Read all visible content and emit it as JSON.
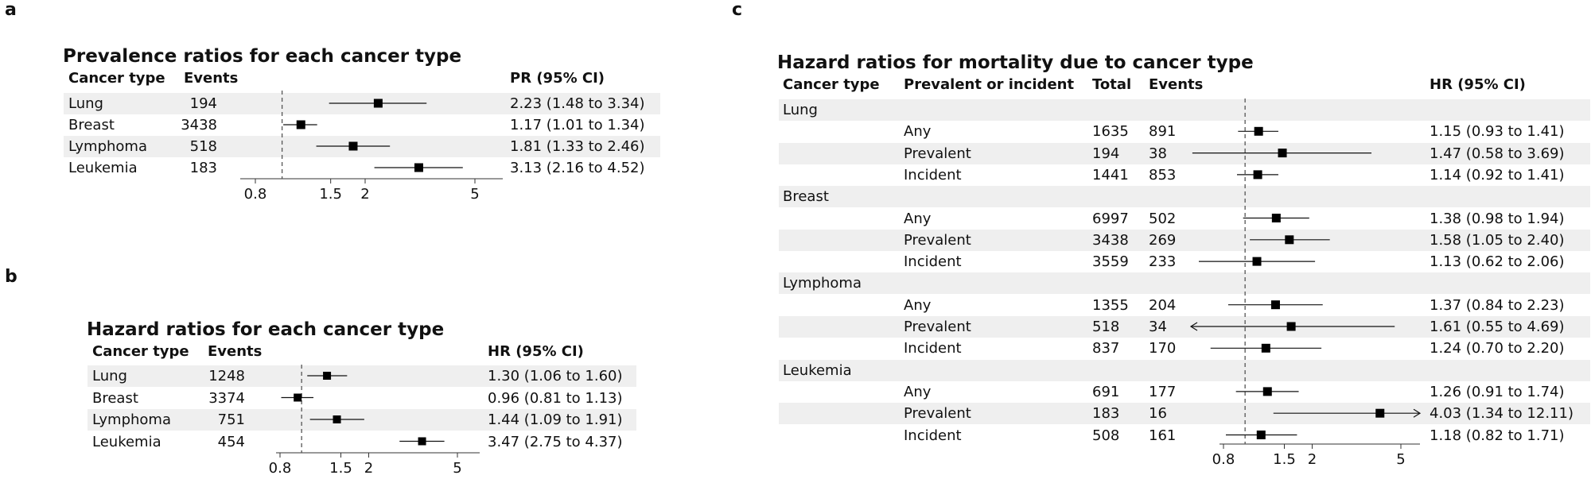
{
  "panels": [
    {
      "letter": "a",
      "title": "Prevalence ratios for each cancer type",
      "headers": {
        "type": "Cancer type",
        "events": "Events",
        "ci": "PR (95% CI)"
      }
    },
    {
      "letter": "b",
      "title": "Hazard ratios for each cancer type",
      "headers": {
        "type": "Cancer type",
        "events": "Events",
        "ci": "HR (95% CI)"
      }
    },
    {
      "letter": "c",
      "title": "Hazard ratios for mortality due to cancer type",
      "headers": {
        "type": "Cancer type",
        "pi": "Prevalent or incident",
        "total": "Total",
        "events": "Events",
        "ci": "HR (95% CI)"
      }
    }
  ],
  "chart_data": [
    {
      "type": "forest",
      "panel": "a",
      "title": "Prevalence ratios for each cancer type",
      "reference_line": 1,
      "xticks": [
        "0.8",
        "1.5",
        "2",
        "5"
      ],
      "rows": [
        {
          "label": "Lung",
          "events": "194",
          "est": 2.23,
          "lo": 1.48,
          "hi": 3.34,
          "ci_text": "2.23 (1.48 to 3.34)"
        },
        {
          "label": "Breast",
          "events": "3438",
          "est": 1.17,
          "lo": 1.01,
          "hi": 1.34,
          "ci_text": "1.17 (1.01 to 1.34)"
        },
        {
          "label": "Lymphoma",
          "events": "518",
          "est": 1.81,
          "lo": 1.33,
          "hi": 2.46,
          "ci_text": "1.81 (1.33 to 2.46)"
        },
        {
          "label": "Leukemia",
          "events": "183",
          "est": 3.13,
          "lo": 2.16,
          "hi": 4.52,
          "ci_text": "3.13 (2.16 to 4.52)"
        }
      ]
    },
    {
      "type": "forest",
      "panel": "b",
      "title": "Hazard ratios for each cancer type",
      "reference_line": 1,
      "xticks": [
        "0.8",
        "1.5",
        "2",
        "5"
      ],
      "rows": [
        {
          "label": "Lung",
          "events": "1248",
          "est": 1.3,
          "lo": 1.06,
          "hi": 1.6,
          "ci_text": "1.30 (1.06 to 1.60)"
        },
        {
          "label": "Breast",
          "events": "3374",
          "est": 0.96,
          "lo": 0.81,
          "hi": 1.13,
          "ci_text": "0.96 (0.81 to 1.13)"
        },
        {
          "label": "Lymphoma",
          "events": "751",
          "est": 1.44,
          "lo": 1.09,
          "hi": 1.91,
          "ci_text": "1.44 (1.09 to 1.91)"
        },
        {
          "label": "Leukemia",
          "events": "454",
          "est": 3.47,
          "lo": 2.75,
          "hi": 4.37,
          "ci_text": "3.47 (2.75 to 4.37)"
        }
      ]
    },
    {
      "type": "forest",
      "panel": "c",
      "title": "Hazard ratios for mortality due to cancer type",
      "reference_line": 1,
      "xticks": [
        "0.8",
        "1.5",
        "2",
        "5"
      ],
      "groups": [
        {
          "label": "Lung",
          "rows": [
            {
              "label": "Any",
              "total": "1635",
              "events": "891",
              "est": 1.15,
              "lo": 0.93,
              "hi": 1.41,
              "ci_text": "1.15 (0.93 to 1.41)"
            },
            {
              "label": "Prevalent",
              "total": "194",
              "events": "38",
              "est": 1.47,
              "lo": 0.58,
              "hi": 3.69,
              "ci_text": "1.47 (0.58 to 3.69)"
            },
            {
              "label": "Incident",
              "total": "1441",
              "events": "853",
              "est": 1.14,
              "lo": 0.92,
              "hi": 1.41,
              "ci_text": "1.14 (0.92 to 1.41)"
            }
          ]
        },
        {
          "label": "Breast",
          "rows": [
            {
              "label": "Any",
              "total": "6997",
              "events": "502",
              "est": 1.38,
              "lo": 0.98,
              "hi": 1.94,
              "ci_text": "1.38 (0.98 to 1.94)"
            },
            {
              "label": "Prevalent",
              "total": "3438",
              "events": "269",
              "est": 1.58,
              "lo": 1.05,
              "hi": 2.4,
              "ci_text": "1.58 (1.05 to 2.40)"
            },
            {
              "label": "Incident",
              "total": "3559",
              "events": "233",
              "est": 1.13,
              "lo": 0.62,
              "hi": 2.06,
              "ci_text": "1.13 (0.62 to 2.06)"
            }
          ]
        },
        {
          "label": "Lymphoma",
          "rows": [
            {
              "label": "Any",
              "total": "1355",
              "events": "204",
              "est": 1.37,
              "lo": 0.84,
              "hi": 2.23,
              "ci_text": "1.37 (0.84 to 2.23)"
            },
            {
              "label": "Prevalent",
              "total": "518",
              "events": "34",
              "est": 1.61,
              "lo": 0.55,
              "hi": 4.69,
              "ci_text": "1.61 (0.55 to 4.69)"
            },
            {
              "label": "Incident",
              "total": "837",
              "events": "170",
              "est": 1.24,
              "lo": 0.7,
              "hi": 2.2,
              "ci_text": "1.24 (0.70 to 2.20)"
            }
          ]
        },
        {
          "label": "Leukemia",
          "rows": [
            {
              "label": "Any",
              "total": "691",
              "events": "177",
              "est": 1.26,
              "lo": 0.91,
              "hi": 1.74,
              "ci_text": "1.26 (0.91 to 1.74)"
            },
            {
              "label": "Prevalent",
              "total": "183",
              "events": "16",
              "est": 4.03,
              "lo": 1.34,
              "hi": 12.11,
              "ci_text": "4.03 (1.34 to 12.11)"
            },
            {
              "label": "Incident",
              "total": "508",
              "events": "161",
              "est": 1.18,
              "lo": 0.82,
              "hi": 1.71,
              "ci_text": "1.18 (0.82 to 1.71)"
            }
          ]
        }
      ]
    }
  ]
}
